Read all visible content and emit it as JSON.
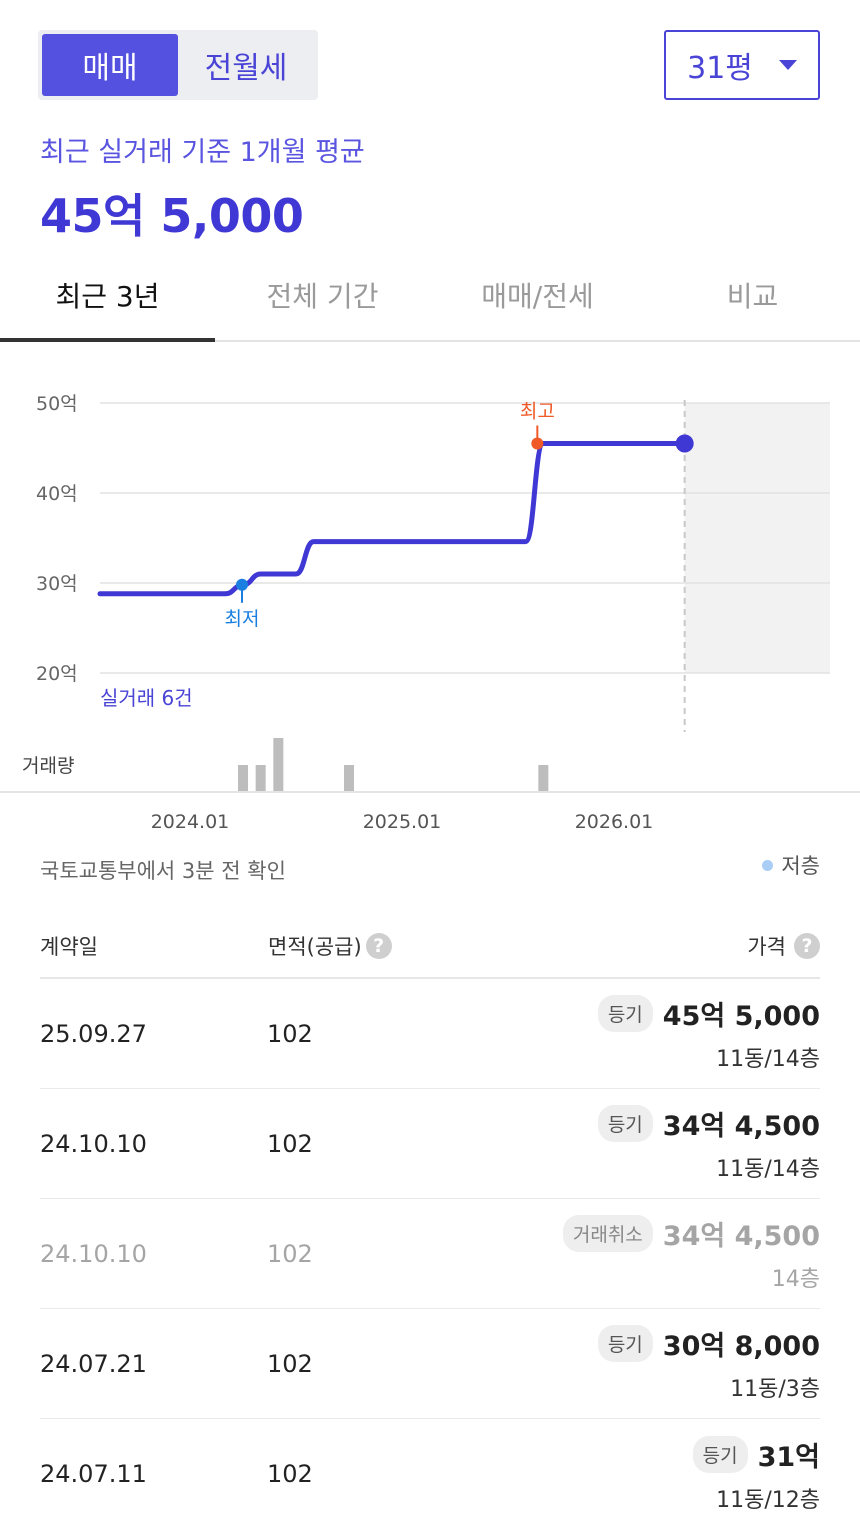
{
  "segment": {
    "tabs": [
      "매매",
      "전월세"
    ],
    "active": 0
  },
  "area_select": {
    "label": "31평"
  },
  "summary": {
    "label": "최근 실거래 기준 1개월 평균",
    "price": "45억 5,000"
  },
  "tabs": [
    {
      "label": "최근 3년",
      "active": true
    },
    {
      "label": "전체 기간",
      "active": false
    },
    {
      "label": "매매/전세",
      "active": false
    },
    {
      "label": "비교",
      "active": false
    }
  ],
  "chart_data": {
    "type": "line",
    "ylim": [
      20,
      50
    ],
    "y_ticks": [
      "50억",
      "40억",
      "30억",
      "20억"
    ],
    "x_ticks": [
      "2024.01",
      "2025.01",
      "2026.01"
    ],
    "series": [
      {
        "points": [
          {
            "x": "2023-01",
            "y": 28.8
          },
          {
            "x": "2024-03",
            "y": 28.8
          },
          {
            "x": "2024-04",
            "y": 29.8
          },
          {
            "x": "2024-05",
            "y": 31.0
          },
          {
            "x": "2024-07",
            "y": 31.0
          },
          {
            "x": "2024-08",
            "y": 34.6
          },
          {
            "x": "2025-08",
            "y": 34.6
          },
          {
            "x": "2025-09",
            "y": 45.5
          },
          {
            "x": "2026-05",
            "y": 45.5
          }
        ]
      }
    ],
    "markers": {
      "high_label": "최고",
      "low_label": "최저"
    },
    "count_label": "실거래 6건",
    "volume_label": "거래량",
    "volume": [
      {
        "x": "2024-04",
        "count": 1
      },
      {
        "x": "2024-05",
        "count": 1
      },
      {
        "x": "2024-06",
        "count": 2
      },
      {
        "x": "2024-10",
        "count": 1
      },
      {
        "x": "2025-09",
        "count": 1
      }
    ]
  },
  "source": "국토교통부에서 3분 전 확인",
  "legend": {
    "label": "저층",
    "color": "#a9cdf5"
  },
  "table": {
    "headers": {
      "date": "계약일",
      "area": "면적(공급)",
      "price": "가격"
    },
    "help_glyph": "?",
    "rows": [
      {
        "date": "25.09.27",
        "area": "102",
        "badge": "등기",
        "price": "45억 5,000",
        "floor": "11동/14층",
        "cancelled": false
      },
      {
        "date": "24.10.10",
        "area": "102",
        "badge": "등기",
        "price": "34억 4,500",
        "floor": "11동/14층",
        "cancelled": false
      },
      {
        "date": "24.10.10",
        "area": "102",
        "badge": "거래취소",
        "price": "34억 4,500",
        "floor": "14층",
        "cancelled": true
      },
      {
        "date": "24.07.21",
        "area": "102",
        "badge": "등기",
        "price": "30억 8,000",
        "floor": "11동/3층",
        "cancelled": false
      },
      {
        "date": "24.07.11",
        "area": "102",
        "badge": "등기",
        "price": "31억",
        "floor": "11동/12층",
        "cancelled": false
      }
    ]
  },
  "colors": {
    "accent": "#4a44d6",
    "line": "#4038d4",
    "high": "#f05a28",
    "low": "#1a7fe0",
    "volume": "#bdbdbd"
  }
}
